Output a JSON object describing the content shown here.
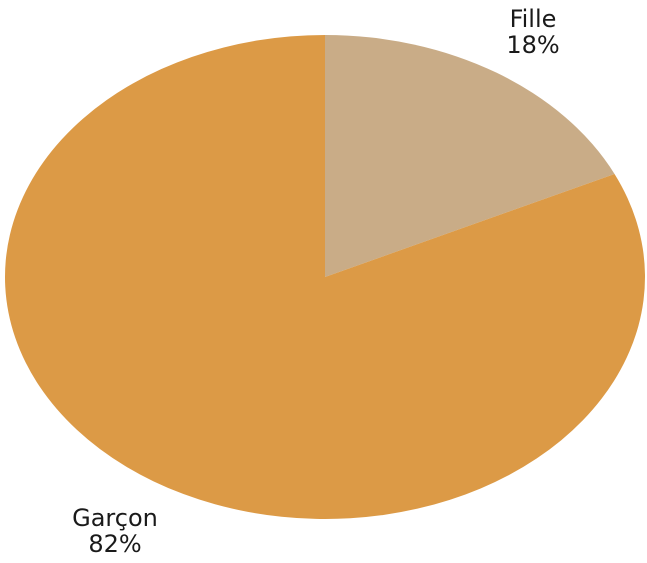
{
  "chart_data": {
    "type": "pie",
    "title": "",
    "start_angle_deg": 0,
    "direction": "clockwise",
    "slices": [
      {
        "label": "Fille",
        "value": 18,
        "value_label": "18%",
        "color": "#c9ac87"
      },
      {
        "label": "Garçon",
        "value": 82,
        "value_label": "82%",
        "color": "#dc9a46"
      }
    ]
  }
}
